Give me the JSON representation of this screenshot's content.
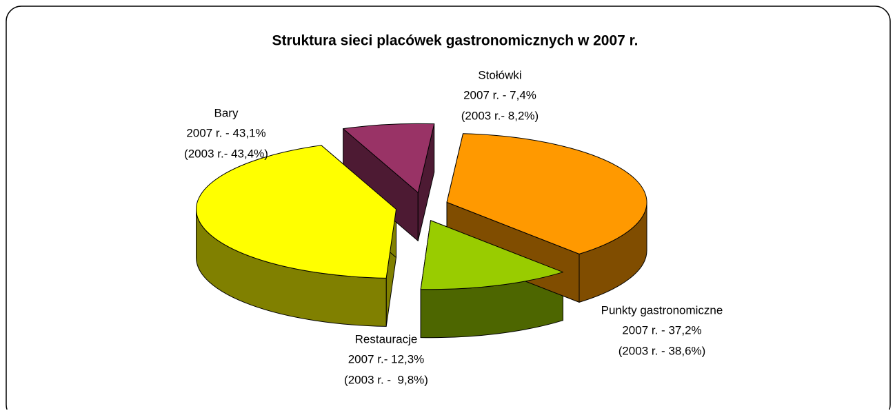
{
  "chart_data": {
    "type": "pie3d",
    "title": "Struktura sieci placówek gastronomicznych w 2007 r.",
    "categories": [
      "Stołówki",
      "Punkty gastronomiczne",
      "Restauracje",
      "Bary"
    ],
    "values": [
      7.4,
      37.2,
      12.3,
      43.1
    ],
    "value_labels": [
      "2007 r. - 7,4%",
      "2007 r. - 37,2%",
      "2007 r.- 12,3%",
      "2007 r. - 43,1%"
    ],
    "previous_value_labels": [
      "(2003 r.- 8,2%)",
      "(2003 r. - 38,6%)",
      "(2003 r. -  9,8%)",
      "(2003 r.- 43,4%)"
    ],
    "colors": [
      "#993366",
      "#ff9900",
      "#99cc00",
      "#ffff00"
    ]
  }
}
